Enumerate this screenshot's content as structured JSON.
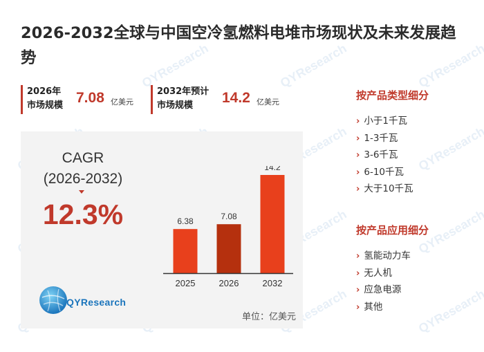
{
  "title": "2026-2032全球与中国空冷氢燃料电堆市场现状及未来发展趋势",
  "metrics": [
    {
      "label_line1": "2026年",
      "label_line2": "市场规模",
      "value": "7.08",
      "unit": "亿美元"
    },
    {
      "label_line1": "2032年预计",
      "label_line2": "市场规模",
      "value": "14.2",
      "unit": "亿美元"
    }
  ],
  "cagr": {
    "label_line1": "CAGR",
    "label_line2": "(2026-2032)",
    "value": "12.3%"
  },
  "logo": {
    "text": "QYResearch"
  },
  "watermark": "QYResearch",
  "colors": {
    "accent": "#c0392b",
    "bar_normal": "#e8401c",
    "bar_highlight": "#b5300e",
    "axis": "#333333"
  },
  "chart_data": {
    "type": "bar",
    "categories": [
      "2025",
      "2026",
      "2032"
    ],
    "values": [
      6.38,
      7.08,
      14.2
    ],
    "value_labels": [
      "6.38",
      "7.08",
      "14.2"
    ],
    "highlight_index": 1,
    "ylim": [
      0,
      15.5
    ],
    "unit_note": "单位：亿美元"
  },
  "sidebar": {
    "product_type": {
      "heading": "按产品类型细分",
      "items": [
        "小于1千瓦",
        "1-3千瓦",
        "3-6千瓦",
        "6-10千瓦",
        "大于10千瓦"
      ]
    },
    "application": {
      "heading": "按产品应用细分",
      "items": [
        "氢能动力车",
        "无人机",
        "应急电源",
        "其他"
      ]
    }
  }
}
